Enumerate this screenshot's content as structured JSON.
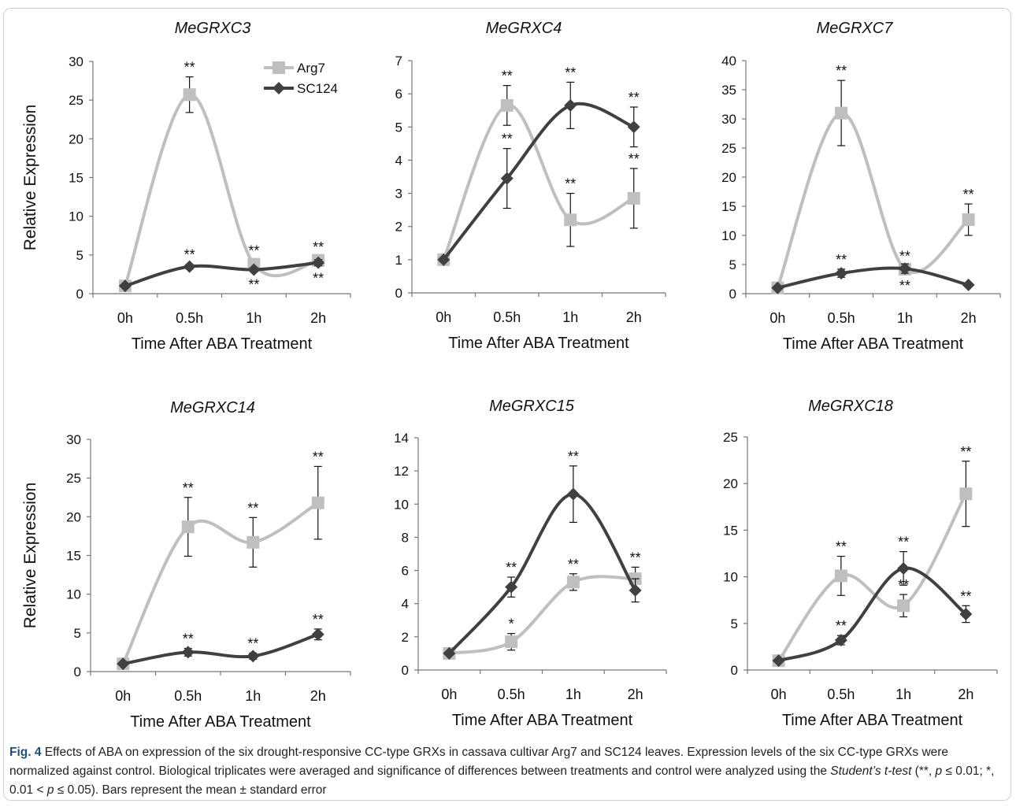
{
  "caption": {
    "label": "Fig. 4",
    "part1": " Effects of ABA on expression of the six drought-responsive CC-type GRXs in cassava cultivar Arg7 and SC124 leaves. Expression levels of the six CC-type GRXs were normalized against control. Biological triplicates were averaged and significance of differences between treatments and control were analyzed using the ",
    "test_name": "Student’s t-test",
    "part2": " (**, ",
    "p1": "p",
    "part3": " ≤ 0.01; *, 0.01 < ",
    "p2": "p",
    "part4": " ≤ 0.05). Bars represent the mean ± standard error"
  },
  "colors": {
    "Arg7": "#bfbfbf",
    "SC124": "#404040"
  },
  "chart_data": [
    {
      "type": "line",
      "title": "MeGRXC3",
      "xlabel": "Time After ABA Treatment",
      "ylabel": "Relative Expression",
      "categories": [
        "0h",
        "0.5h",
        "1h",
        "2h"
      ],
      "ylim": [
        0,
        30
      ],
      "yticks": [
        0,
        5,
        10,
        15,
        20,
        25,
        30
      ],
      "legend": "top-right",
      "series": [
        {
          "name": "Arg7",
          "values": [
            1,
            25.7,
            3.8,
            4.3
          ],
          "errors": [
            0,
            2.3,
            0.5,
            0.5
          ],
          "sig": [
            "",
            "**",
            "**",
            "**"
          ]
        },
        {
          "name": "SC124",
          "values": [
            1,
            3.5,
            3.1,
            4.0
          ],
          "errors": [
            0,
            0.3,
            0.3,
            0.4
          ],
          "sig": [
            "",
            "**",
            "**",
            "**"
          ]
        }
      ]
    },
    {
      "type": "line",
      "title": "MeGRXC4",
      "xlabel": "Time After ABA Treatment",
      "ylabel": "",
      "categories": [
        "0h",
        "0.5h",
        "1h",
        "2h"
      ],
      "ylim": [
        0,
        7
      ],
      "yticks": [
        0,
        1,
        2,
        3,
        4,
        5,
        6,
        7
      ],
      "series": [
        {
          "name": "Arg7",
          "values": [
            1,
            5.65,
            2.2,
            2.85
          ],
          "errors": [
            0,
            0.6,
            0.8,
            0.9
          ],
          "sig": [
            "",
            "**",
            "**",
            "**"
          ]
        },
        {
          "name": "SC124",
          "values": [
            1,
            3.45,
            5.65,
            5.0
          ],
          "errors": [
            0,
            0.9,
            0.7,
            0.6
          ],
          "sig": [
            "",
            "**",
            "**",
            "**"
          ]
        }
      ]
    },
    {
      "type": "line",
      "title": "MeGRXC7",
      "xlabel": "Time After ABA Treatment",
      "ylabel": "",
      "categories": [
        "0h",
        "0.5h",
        "1h",
        "2h"
      ],
      "ylim": [
        0,
        40
      ],
      "yticks": [
        0,
        5,
        10,
        15,
        20,
        25,
        30,
        35,
        40
      ],
      "series": [
        {
          "name": "Arg7",
          "values": [
            1,
            31,
            4.2,
            12.7
          ],
          "errors": [
            0,
            5.6,
            0.6,
            2.7
          ],
          "sig": [
            "",
            "**",
            "**",
            "**"
          ]
        },
        {
          "name": "SC124",
          "values": [
            1,
            3.5,
            4.3,
            1.5
          ],
          "errors": [
            0,
            0.7,
            0.8,
            0.2
          ],
          "sig": [
            "",
            "**",
            "**",
            ""
          ]
        }
      ]
    },
    {
      "type": "line",
      "title": "MeGRXC14",
      "xlabel": "Time After ABA Treatment",
      "ylabel": "Relative Expression",
      "categories": [
        "0h",
        "0.5h",
        "1h",
        "2h"
      ],
      "ylim": [
        0,
        30
      ],
      "yticks": [
        0,
        5,
        10,
        15,
        20,
        25,
        30
      ],
      "series": [
        {
          "name": "Arg7",
          "values": [
            1,
            18.7,
            16.7,
            21.8
          ],
          "errors": [
            0,
            3.8,
            3.2,
            4.7
          ],
          "sig": [
            "",
            "**",
            "**",
            "**"
          ]
        },
        {
          "name": "SC124",
          "values": [
            1,
            2.5,
            2.0,
            4.8
          ],
          "errors": [
            0,
            0.5,
            0.4,
            0.7
          ],
          "sig": [
            "",
            "**",
            "**",
            "**"
          ]
        }
      ]
    },
    {
      "type": "line",
      "title": "MeGRXC15",
      "xlabel": "Time After ABA Treatment",
      "ylabel": "",
      "categories": [
        "0h",
        "0.5h",
        "1h",
        "2h"
      ],
      "ylim": [
        0,
        14
      ],
      "yticks": [
        0,
        2,
        4,
        6,
        8,
        10,
        12,
        14
      ],
      "series": [
        {
          "name": "Arg7",
          "values": [
            1,
            1.7,
            5.3,
            5.5
          ],
          "errors": [
            0,
            0.5,
            0.5,
            0.7
          ],
          "sig": [
            "",
            "*",
            "**",
            "**"
          ]
        },
        {
          "name": "SC124",
          "values": [
            1,
            5.0,
            10.6,
            4.8
          ],
          "errors": [
            0,
            0.6,
            1.7,
            0.7
          ],
          "sig": [
            "",
            "**",
            "**",
            ""
          ]
        }
      ]
    },
    {
      "type": "line",
      "title": "MeGRXC18",
      "xlabel": "Time After ABA Treatment",
      "ylabel": "",
      "categories": [
        "0h",
        "0.5h",
        "1h",
        "2h"
      ],
      "ylim": [
        0,
        25
      ],
      "yticks": [
        0,
        5,
        10,
        15,
        20,
        25
      ],
      "series": [
        {
          "name": "Arg7",
          "values": [
            1,
            10.1,
            6.9,
            18.9
          ],
          "errors": [
            0,
            2.1,
            1.2,
            3.5
          ],
          "sig": [
            "",
            "**",
            "**",
            "**"
          ]
        },
        {
          "name": "SC124",
          "values": [
            1,
            3.2,
            10.9,
            6.0
          ],
          "errors": [
            0,
            0.5,
            1.8,
            0.9
          ],
          "sig": [
            "",
            "**",
            "**",
            "**"
          ]
        }
      ]
    }
  ]
}
